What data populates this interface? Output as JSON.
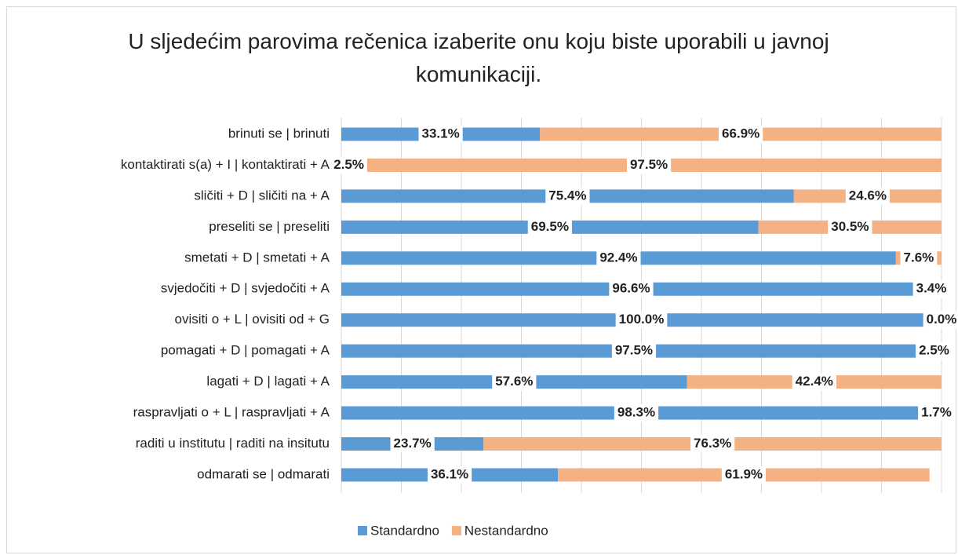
{
  "chart_data": {
    "type": "stacked-bar-horizontal",
    "title": "U sljedećim parovima rečenica izaberite onu koju biste uporabili u javnoj komunikaciji.",
    "categories": [
      "brinuti se | brinuti",
      "kontaktirati s(a) + I | kontaktirati + A",
      "sličiti + D | sličiti na + A",
      "preseliti se | preseliti",
      "smetati + D | smetati + A",
      "svjedočiti + D | svjedočiti + A",
      "ovisiti o + L | ovisiti od + G",
      "pomagati + D | pomagati + A",
      "lagati + D | lagati + A",
      "raspravljati o + L | raspravljati + A",
      "raditi u institutu | raditi na insitutu",
      "odmarati se | odmarati"
    ],
    "series": [
      {
        "name": "Standardno",
        "color": "#5b9bd5",
        "values": [
          33.1,
          2.5,
          75.4,
          69.5,
          92.4,
          96.6,
          100.0,
          97.5,
          57.6,
          98.3,
          23.7,
          36.1
        ],
        "value_labels": [
          "33.1%",
          "2.5%",
          "75.4%",
          "69.5%",
          "92.4%",
          "96.6%",
          "100.0%",
          "97.5%",
          "57.6%",
          "98.3%",
          "23.7%",
          "36.1%"
        ]
      },
      {
        "name": "Nestandardno",
        "color": "#f4b183",
        "values": [
          66.9,
          97.5,
          24.6,
          30.5,
          7.6,
          3.4,
          0.0,
          2.5,
          42.4,
          1.7,
          76.3,
          61.9
        ],
        "value_labels": [
          "66.9%",
          "97.5%",
          "24.6%",
          "30.5%",
          "7.6%",
          "3.4%",
          "0.0%",
          "2.5%",
          "42.4%",
          "1.7%",
          "76.3%",
          "61.9%"
        ]
      }
    ],
    "xlim": [
      0,
      100
    ],
    "xticks": [
      0,
      10,
      20,
      30,
      40,
      50,
      60,
      70,
      80,
      90,
      100
    ],
    "grid": true,
    "legend": "bottom"
  }
}
